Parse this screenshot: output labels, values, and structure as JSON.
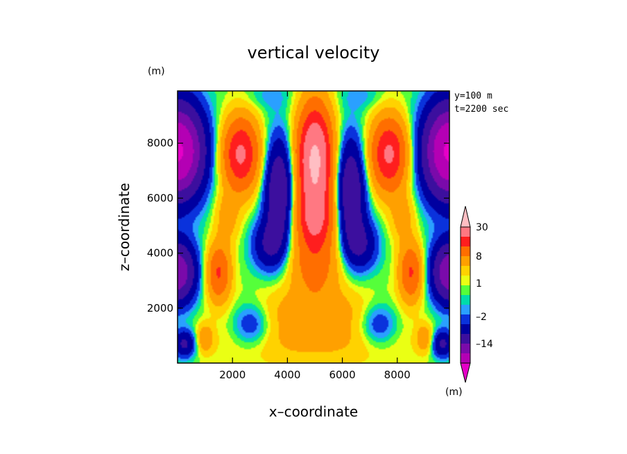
{
  "chart_data": {
    "type": "heatmap",
    "title": "vertical velocity",
    "xlabel": "x–coordinate",
    "ylabel": "z–coordinate",
    "x_unit": "(m)",
    "y_unit": "(m)",
    "colorbar_unit": "(m)",
    "annotations": [
      "y=100 m",
      "t=2200 sec"
    ],
    "xlim": [
      0,
      9900
    ],
    "ylim": [
      0,
      9900
    ],
    "xticks": [
      2000,
      4000,
      6000,
      8000
    ],
    "yticks": [
      2000,
      4000,
      6000,
      8000
    ],
    "colorbar": {
      "levels": [
        -28,
        -20,
        -14,
        -8,
        -4,
        -2,
        -1,
        0,
        1,
        2,
        4,
        8,
        14,
        20,
        30
      ],
      "colors": [
        "#e600c8",
        "#b400b4",
        "#7a0aaa",
        "#3c0f9e",
        "#0000a0",
        "#0a32dc",
        "#2aa0ff",
        "#00dcaa",
        "#55ff3a",
        "#eaff14",
        "#ffd200",
        "#ffa000",
        "#ff6e00",
        "#ff1e1e",
        "#ff7882",
        "#ffbec3"
      ],
      "tick_labels": [
        {
          "value": 30,
          "text": "30"
        },
        {
          "value": 8,
          "text": "8"
        },
        {
          "value": 1,
          "text": "1"
        },
        {
          "value": -2,
          "text": "–2"
        },
        {
          "value": -14,
          "text": "–14"
        }
      ],
      "extend": "both"
    },
    "features": [
      {
        "kind": "central_updraft_core",
        "x": 5000,
        "z_range": [
          4000,
          9800
        ],
        "peak": 33
      },
      {
        "kind": "updraft_lobe",
        "x": 2300,
        "z_range": [
          5000,
          8800
        ],
        "peak": 22
      },
      {
        "kind": "updraft_lobe",
        "x": 7700,
        "z_range": [
          5000,
          8800
        ],
        "peak": 22
      },
      {
        "kind": "updraft_lobe",
        "x": 1500,
        "z_range": [
          2500,
          4500
        ],
        "peak": 15
      },
      {
        "kind": "updraft_lobe",
        "x": 8500,
        "z_range": [
          2500,
          4500
        ],
        "peak": 15
      },
      {
        "kind": "downdraft",
        "x": 3700,
        "z_range": [
          4000,
          8500
        ],
        "peak": -16
      },
      {
        "kind": "downdraft",
        "x": 6300,
        "z_range": [
          4000,
          8500
        ],
        "peak": -16
      },
      {
        "kind": "downdraft",
        "x": 200,
        "z_range": [
          6000,
          9500
        ],
        "peak": -30
      },
      {
        "kind": "downdraft",
        "x": 9800,
        "z_range": [
          6000,
          9500
        ],
        "peak": -30
      },
      {
        "kind": "downdraft",
        "x": 200,
        "z_range": [
          2500,
          4500
        ],
        "peak": -20
      },
      {
        "kind": "downdraft",
        "x": 9800,
        "z_range": [
          2500,
          4500
        ],
        "peak": -20
      }
    ]
  }
}
